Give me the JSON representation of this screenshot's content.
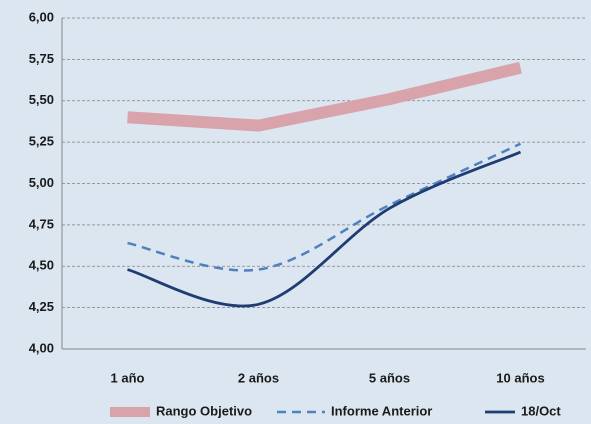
{
  "chart_data": {
    "type": "line",
    "categories": [
      "1 año",
      "2 años",
      "5 años",
      "10 años"
    ],
    "series": [
      {
        "name": "Rango Objetivo",
        "color": "#d9a3ab",
        "values": [
          5.4,
          5.35,
          5.51,
          5.7
        ]
      },
      {
        "name": "Informe Anterior",
        "color": "#4f81bd",
        "values": [
          4.64,
          4.48,
          4.87,
          5.24
        ]
      },
      {
        "name": "18/Oct",
        "color": "#1f3d73",
        "values": [
          4.48,
          4.27,
          4.85,
          5.19
        ]
      }
    ],
    "ylim": [
      4.0,
      6.0
    ],
    "yticks": [
      {
        "value": 4.0,
        "label": "4,00"
      },
      {
        "value": 4.25,
        "label": "4,25"
      },
      {
        "value": 4.5,
        "label": "4,50"
      },
      {
        "value": 4.75,
        "label": "4,75"
      },
      {
        "value": 5.0,
        "label": "5,00"
      },
      {
        "value": 5.25,
        "label": "5,25"
      },
      {
        "value": 5.5,
        "label": "5,50"
      },
      {
        "value": 5.75,
        "label": "5,75"
      },
      {
        "value": 6.0,
        "label": "6,00"
      }
    ],
    "grid": true,
    "legend": "bottom"
  }
}
